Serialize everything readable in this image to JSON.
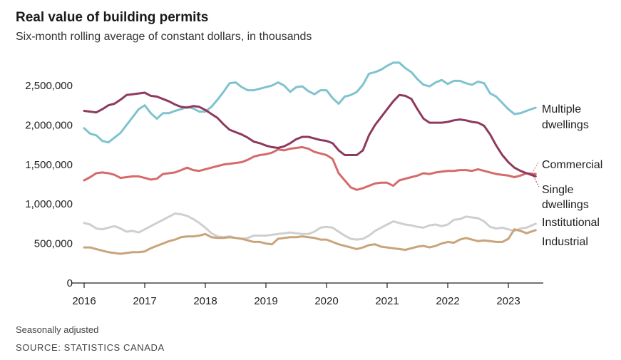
{
  "title": "Real value of building permits",
  "subtitle": "Six-month rolling average of constant dollars, in thousands",
  "note": "Seasonally adjusted",
  "source": "SOURCE: STATISTICS CANADA",
  "chart_data": {
    "type": "line",
    "title": "Real value of building permits",
    "subtitle": "Six-month rolling average of constant dollars, in thousands",
    "xlim": [
      2016,
      2023.5
    ],
    "ylim": [
      0,
      2500000
    ],
    "x_ticks": [
      "2016",
      "2017",
      "2018",
      "2019",
      "2020",
      "2021",
      "2022",
      "2023"
    ],
    "y_ticks": [
      "0",
      "500,000",
      "1,000,000",
      "1,500,000",
      "2,000,000",
      "2,500,000"
    ],
    "grid": false,
    "series": [
      {
        "name": "Multiple dwellings",
        "label_lines": [
          "Multiple",
          "dwellings"
        ],
        "color": "#7fc3cf",
        "x": [
          2016,
          2016.1,
          2016.2,
          2016.3,
          2016.4,
          2016.5,
          2016.6,
          2016.7,
          2016.8,
          2016.9,
          2017.0,
          2017.1,
          2017.2,
          2017.3,
          2017.4,
          2017.5,
          2017.6,
          2017.7,
          2017.8,
          2017.9,
          2018.0,
          2018.1,
          2018.2,
          2018.3,
          2018.4,
          2018.5,
          2018.6,
          2018.7,
          2018.8,
          2018.9,
          2019.0,
          2019.1,
          2019.2,
          2019.3,
          2019.4,
          2019.5,
          2019.6,
          2019.7,
          2019.8,
          2019.9,
          2020.0,
          2020.1,
          2020.2,
          2020.3,
          2020.4,
          2020.5,
          2020.6,
          2020.7,
          2020.8,
          2020.9,
          2021.0,
          2021.1,
          2021.2,
          2021.3,
          2021.4,
          2021.5,
          2021.6,
          2021.7,
          2021.8,
          2021.9,
          2022.0,
          2022.1,
          2022.2,
          2022.3,
          2022.4,
          2022.5,
          2022.6,
          2022.7,
          2022.8,
          2022.9,
          2023.0,
          2023.1,
          2023.2,
          2023.3,
          2023.45
        ],
        "values": [
          1960000,
          1890000,
          1870000,
          1800000,
          1780000,
          1840000,
          1900000,
          2000000,
          2100000,
          2200000,
          2250000,
          2150000,
          2080000,
          2150000,
          2150000,
          2180000,
          2200000,
          2230000,
          2210000,
          2170000,
          2170000,
          2230000,
          2320000,
          2420000,
          2530000,
          2540000,
          2480000,
          2440000,
          2440000,
          2460000,
          2480000,
          2500000,
          2540000,
          2500000,
          2420000,
          2480000,
          2490000,
          2430000,
          2390000,
          2440000,
          2440000,
          2340000,
          2270000,
          2360000,
          2380000,
          2420000,
          2510000,
          2650000,
          2670000,
          2700000,
          2750000,
          2790000,
          2790000,
          2720000,
          2670000,
          2580000,
          2510000,
          2490000,
          2540000,
          2570000,
          2520000,
          2560000,
          2560000,
          2530000,
          2510000,
          2550000,
          2530000,
          2400000,
          2360000,
          2280000,
          2200000,
          2140000,
          2150000,
          2180000,
          2220000
        ]
      },
      {
        "name": "Single dwellings",
        "label_lines": [
          "Single",
          "dwellings"
        ],
        "color": "#8e3a5e",
        "x": [
          2016,
          2016.1,
          2016.2,
          2016.3,
          2016.4,
          2016.5,
          2016.6,
          2016.7,
          2016.8,
          2016.9,
          2017.0,
          2017.1,
          2017.2,
          2017.3,
          2017.4,
          2017.5,
          2017.6,
          2017.7,
          2017.8,
          2017.9,
          2018.0,
          2018.1,
          2018.2,
          2018.3,
          2018.4,
          2018.5,
          2018.6,
          2018.7,
          2018.8,
          2018.9,
          2019.0,
          2019.1,
          2019.2,
          2019.3,
          2019.4,
          2019.5,
          2019.6,
          2019.7,
          2019.8,
          2019.9,
          2020.0,
          2020.1,
          2020.2,
          2020.3,
          2020.4,
          2020.5,
          2020.6,
          2020.7,
          2020.8,
          2020.9,
          2021.0,
          2021.1,
          2021.2,
          2021.3,
          2021.4,
          2021.5,
          2021.6,
          2021.7,
          2021.8,
          2021.9,
          2022.0,
          2022.1,
          2022.2,
          2022.3,
          2022.4,
          2022.5,
          2022.6,
          2022.7,
          2022.8,
          2022.9,
          2023.0,
          2023.1,
          2023.2,
          2023.3,
          2023.45
        ],
        "values": [
          2180000,
          2170000,
          2160000,
          2200000,
          2250000,
          2270000,
          2320000,
          2380000,
          2390000,
          2400000,
          2410000,
          2370000,
          2360000,
          2330000,
          2300000,
          2260000,
          2230000,
          2220000,
          2240000,
          2230000,
          2190000,
          2140000,
          2090000,
          2010000,
          1940000,
          1910000,
          1880000,
          1840000,
          1790000,
          1770000,
          1740000,
          1720000,
          1710000,
          1730000,
          1770000,
          1820000,
          1850000,
          1850000,
          1830000,
          1810000,
          1800000,
          1770000,
          1680000,
          1620000,
          1620000,
          1620000,
          1680000,
          1870000,
          2000000,
          2100000,
          2200000,
          2300000,
          2380000,
          2370000,
          2330000,
          2200000,
          2080000,
          2030000,
          2030000,
          2030000,
          2040000,
          2060000,
          2070000,
          2060000,
          2040000,
          2030000,
          1990000,
          1880000,
          1740000,
          1620000,
          1530000,
          1460000,
          1420000,
          1390000,
          1350000
        ]
      },
      {
        "name": "Commercial",
        "label_lines": [
          "Commercial"
        ],
        "color": "#d66a6a",
        "x": [
          2016,
          2016.1,
          2016.2,
          2016.3,
          2016.4,
          2016.5,
          2016.6,
          2016.7,
          2016.8,
          2016.9,
          2017.0,
          2017.1,
          2017.2,
          2017.3,
          2017.4,
          2017.5,
          2017.6,
          2017.7,
          2017.8,
          2017.9,
          2018.0,
          2018.1,
          2018.2,
          2018.3,
          2018.4,
          2018.5,
          2018.6,
          2018.7,
          2018.8,
          2018.9,
          2019.0,
          2019.1,
          2019.2,
          2019.3,
          2019.4,
          2019.5,
          2019.6,
          2019.7,
          2019.8,
          2019.9,
          2020.0,
          2020.1,
          2020.2,
          2020.3,
          2020.4,
          2020.5,
          2020.6,
          2020.7,
          2020.8,
          2020.9,
          2021.0,
          2021.1,
          2021.2,
          2021.3,
          2021.4,
          2021.5,
          2021.6,
          2021.7,
          2021.8,
          2021.9,
          2022.0,
          2022.1,
          2022.2,
          2022.3,
          2022.4,
          2022.5,
          2022.6,
          2022.7,
          2022.8,
          2022.9,
          2023.0,
          2023.1,
          2023.2,
          2023.3,
          2023.45
        ],
        "values": [
          1300000,
          1340000,
          1390000,
          1400000,
          1390000,
          1370000,
          1330000,
          1340000,
          1350000,
          1350000,
          1330000,
          1310000,
          1320000,
          1380000,
          1390000,
          1400000,
          1430000,
          1460000,
          1430000,
          1420000,
          1440000,
          1460000,
          1480000,
          1500000,
          1510000,
          1520000,
          1530000,
          1560000,
          1600000,
          1620000,
          1630000,
          1650000,
          1690000,
          1680000,
          1700000,
          1710000,
          1720000,
          1700000,
          1660000,
          1640000,
          1620000,
          1570000,
          1390000,
          1300000,
          1210000,
          1180000,
          1200000,
          1230000,
          1260000,
          1270000,
          1270000,
          1230000,
          1300000,
          1320000,
          1340000,
          1360000,
          1390000,
          1380000,
          1400000,
          1410000,
          1420000,
          1420000,
          1430000,
          1430000,
          1420000,
          1440000,
          1420000,
          1400000,
          1380000,
          1370000,
          1360000,
          1340000,
          1360000,
          1390000,
          1380000
        ]
      },
      {
        "name": "Institutional",
        "label_lines": [
          "Institutional"
        ],
        "color": "#cfcfcf",
        "x": [
          2016,
          2016.1,
          2016.2,
          2016.3,
          2016.4,
          2016.5,
          2016.6,
          2016.7,
          2016.8,
          2016.9,
          2017.0,
          2017.1,
          2017.2,
          2017.3,
          2017.4,
          2017.5,
          2017.6,
          2017.7,
          2017.8,
          2017.9,
          2018.0,
          2018.1,
          2018.2,
          2018.3,
          2018.4,
          2018.5,
          2018.6,
          2018.7,
          2018.8,
          2018.9,
          2019.0,
          2019.1,
          2019.2,
          2019.3,
          2019.4,
          2019.5,
          2019.6,
          2019.7,
          2019.8,
          2019.9,
          2020.0,
          2020.1,
          2020.2,
          2020.3,
          2020.4,
          2020.5,
          2020.6,
          2020.7,
          2020.8,
          2020.9,
          2021.0,
          2021.1,
          2021.2,
          2021.3,
          2021.4,
          2021.5,
          2021.6,
          2021.7,
          2021.8,
          2021.9,
          2022.0,
          2022.1,
          2022.2,
          2022.3,
          2022.4,
          2022.5,
          2022.6,
          2022.7,
          2022.8,
          2022.9,
          2023.0,
          2023.1,
          2023.2,
          2023.3,
          2023.45
        ],
        "values": [
          760000,
          740000,
          690000,
          680000,
          700000,
          720000,
          690000,
          650000,
          660000,
          640000,
          680000,
          720000,
          760000,
          800000,
          840000,
          880000,
          870000,
          850000,
          810000,
          760000,
          700000,
          630000,
          590000,
          580000,
          590000,
          570000,
          560000,
          570000,
          600000,
          600000,
          600000,
          610000,
          620000,
          630000,
          640000,
          630000,
          620000,
          620000,
          650000,
          700000,
          710000,
          700000,
          650000,
          600000,
          560000,
          550000,
          560000,
          600000,
          660000,
          700000,
          740000,
          780000,
          760000,
          740000,
          730000,
          710000,
          700000,
          730000,
          740000,
          720000,
          740000,
          800000,
          810000,
          840000,
          830000,
          820000,
          780000,
          710000,
          690000,
          700000,
          680000,
          660000,
          690000,
          700000,
          750000
        ]
      },
      {
        "name": "Industrial",
        "label_lines": [
          "Industrial"
        ],
        "color": "#c9a47a",
        "x": [
          2016,
          2016.1,
          2016.2,
          2016.3,
          2016.4,
          2016.5,
          2016.6,
          2016.7,
          2016.8,
          2016.9,
          2017.0,
          2017.1,
          2017.2,
          2017.3,
          2017.4,
          2017.5,
          2017.6,
          2017.7,
          2017.8,
          2017.9,
          2018.0,
          2018.1,
          2018.2,
          2018.3,
          2018.4,
          2018.5,
          2018.6,
          2018.7,
          2018.8,
          2018.9,
          2019.0,
          2019.1,
          2019.2,
          2019.3,
          2019.4,
          2019.5,
          2019.6,
          2019.7,
          2019.8,
          2019.9,
          2020.0,
          2020.1,
          2020.2,
          2020.3,
          2020.4,
          2020.5,
          2020.6,
          2020.7,
          2020.8,
          2020.9,
          2021.0,
          2021.1,
          2021.2,
          2021.3,
          2021.4,
          2021.5,
          2021.6,
          2021.7,
          2021.8,
          2021.9,
          2022.0,
          2022.1,
          2022.2,
          2022.3,
          2022.4,
          2022.5,
          2022.6,
          2022.7,
          2022.8,
          2022.9,
          2023.0,
          2023.1,
          2023.2,
          2023.3,
          2023.45
        ],
        "values": [
          450000,
          450000,
          430000,
          410000,
          390000,
          380000,
          370000,
          380000,
          390000,
          390000,
          400000,
          440000,
          470000,
          500000,
          530000,
          550000,
          580000,
          590000,
          590000,
          600000,
          620000,
          580000,
          570000,
          570000,
          580000,
          570000,
          560000,
          540000,
          520000,
          520000,
          500000,
          490000,
          560000,
          570000,
          580000,
          580000,
          590000,
          580000,
          570000,
          550000,
          550000,
          520000,
          490000,
          470000,
          450000,
          430000,
          450000,
          480000,
          490000,
          460000,
          450000,
          440000,
          430000,
          420000,
          440000,
          460000,
          470000,
          450000,
          470000,
          500000,
          520000,
          510000,
          550000,
          570000,
          550000,
          530000,
          540000,
          530000,
          520000,
          520000,
          560000,
          680000,
          660000,
          630000,
          670000
        ]
      }
    ]
  }
}
